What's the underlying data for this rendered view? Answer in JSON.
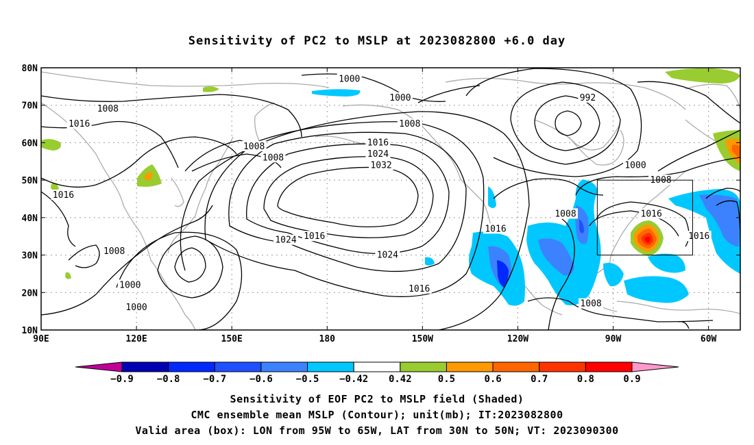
{
  "title": "Sensitivity of PC2 to MSLP at 2023082800 +6.0 day",
  "map": {
    "lat_range": [
      10,
      80
    ],
    "lon_range": [
      90,
      310
    ],
    "lat_ticks": [
      {
        "value": 80,
        "label": "80N"
      },
      {
        "value": 70,
        "label": "70N"
      },
      {
        "value": 60,
        "label": "60N"
      },
      {
        "value": 50,
        "label": "50N"
      },
      {
        "value": 40,
        "label": "40N"
      },
      {
        "value": 30,
        "label": "30N"
      },
      {
        "value": 20,
        "label": "20N"
      },
      {
        "value": 10,
        "label": "10N"
      }
    ],
    "lon_ticks": [
      {
        "value": 90,
        "label": "90E"
      },
      {
        "value": 120,
        "label": "120E"
      },
      {
        "value": 150,
        "label": "150E"
      },
      {
        "value": 180,
        "label": "180"
      },
      {
        "value": 210,
        "label": "150W"
      },
      {
        "value": 240,
        "label": "120W"
      },
      {
        "value": 270,
        "label": "90W"
      },
      {
        "value": 300,
        "label": "60W"
      }
    ],
    "grid": "dotted",
    "valid_box": {
      "lon_min": 265,
      "lon_max": 295,
      "lat_min": 30,
      "lat_max": 50
    },
    "contour_labels": [
      {
        "text": "1000",
        "lon": 187,
        "lat": 77
      },
      {
        "text": "1000",
        "lon": 203,
        "lat": 72
      },
      {
        "text": "992",
        "lon": 262,
        "lat": 72
      },
      {
        "text": "1008",
        "lon": 111,
        "lat": 69
      },
      {
        "text": "1008",
        "lon": 206,
        "lat": 65
      },
      {
        "text": "1016",
        "lon": 102,
        "lat": 65
      },
      {
        "text": "1008",
        "lon": 157,
        "lat": 59
      },
      {
        "text": "1008",
        "lon": 163,
        "lat": 56
      },
      {
        "text": "1016",
        "lon": 196,
        "lat": 60
      },
      {
        "text": "1024",
        "lon": 196,
        "lat": 57
      },
      {
        "text": "1032",
        "lon": 197,
        "lat": 54
      },
      {
        "text": "1000",
        "lon": 277,
        "lat": 54
      },
      {
        "text": "1008",
        "lon": 285,
        "lat": 50
      },
      {
        "text": "1016",
        "lon": 97,
        "lat": 46
      },
      {
        "text": "1016",
        "lon": 282,
        "lat": 41
      },
      {
        "text": "1008",
        "lon": 255,
        "lat": 41
      },
      {
        "text": "1016",
        "lon": 233,
        "lat": 37
      },
      {
        "text": "1016",
        "lon": 297,
        "lat": 35
      },
      {
        "text": "1024",
        "lon": 167,
        "lat": 34
      },
      {
        "text": "1016",
        "lon": 176,
        "lat": 35
      },
      {
        "text": "1008",
        "lon": 113,
        "lat": 31
      },
      {
        "text": "1024",
        "lon": 199,
        "lat": 30
      },
      {
        "text": "1000",
        "lon": 118,
        "lat": 22
      },
      {
        "text": "1016",
        "lon": 209,
        "lat": 21
      },
      {
        "text": "1000",
        "lon": 120,
        "lat": 16
      },
      {
        "text": "1008",
        "lon": 263,
        "lat": 17
      }
    ]
  },
  "colorbar": {
    "labels": [
      "−0.9",
      "−0.8",
      "−0.7",
      "−0.6",
      "−0.5",
      "−0.42",
      "0.42",
      "0.5",
      "0.6",
      "0.7",
      "0.8",
      "0.9"
    ],
    "colors": [
      "#c00099",
      "#0000b4",
      "#0028ff",
      "#1e50ff",
      "#3c82ff",
      "#00c8ff",
      "#ffffff",
      "#98cc30",
      "#ff9900",
      "#ff6600",
      "#ff3300",
      "#ff0000",
      "#ff99cc"
    ]
  },
  "captions": {
    "line1": "Sensitivity of EOF PC2 to MSLP field (Shaded)",
    "line2": "CMC ensemble mean MSLP (Contour); unit(mb); IT:2023082800",
    "line3": "Valid area (box): LON from 95W to 65W, LAT from 30N to 50N; VT: 2023090300"
  }
}
